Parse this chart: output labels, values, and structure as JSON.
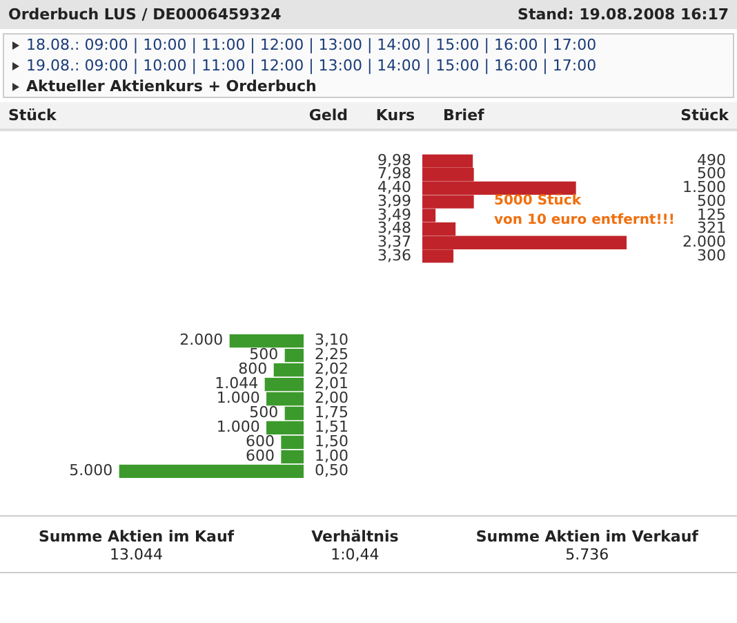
{
  "chart_data": [
    {
      "type": "bar",
      "orientation": "horizontal",
      "subtitle": "Stand: 19.08.2008 16:17",
      "xlabel": "Brief",
      "ylabel": "Kurs",
      "categories": [
        "9,98",
        "7,98",
        "4,40",
        "3,99",
        "3,49",
        "3,48",
        "3,37",
        "3,36"
      ],
      "values": [
        490,
        500,
        1500,
        500,
        125,
        321,
        2000,
        300
      ],
      "value_labels": [
        "490",
        "500",
        "1.500",
        "500",
        "125",
        "321",
        "2.000",
        "300"
      ],
      "color": "#c0242a",
      "grid": false,
      "legend": false,
      "annotations": [
        "18.08.: 09:00 | 10:00 | 11:00 | 12:00 | 13:00 | 14:00 | 15:00 | 16:00 | 17:00",
        "19.08.: 09:00 | 10:00 | 11:00 | 12:00 | 13:00 | 14:00 | 15:00 | 16:00 | 17:00",
        "Aktueller Aktienkurs + Orderbuch",
        "Stück",
        "Geld",
        "Stück",
        "5000 Stück\nvon 10 euro entfernt!!!"
      ]
    },
    {
      "type": "bar",
      "orientation": "horizontal",
      "title": "Orderbuch LUS / DE0006459324",
      "categories": [
        "3,10",
        "2,25",
        "2,02",
        "2,01",
        "2,00",
        "1,75",
        "1,51",
        "1,50",
        "1,00",
        "0,50"
      ],
      "values": [
        2000,
        500,
        800,
        1044,
        1000,
        500,
        1000,
        600,
        600,
        5000
      ],
      "value_labels": [
        "2.000",
        "500",
        "800",
        "1.044",
        "1.000",
        "500",
        "1.000",
        "600",
        "600",
        "5.000"
      ],
      "color": "#3c9a2c",
      "grid": false,
      "legend": false,
      "annotations": [
        "Summe Aktien im Kauf",
        "13.044",
        "Verhältnis",
        "1:0,44",
        "Summe Aktien im Verkauf",
        "5.736"
      ]
    }
  ]
}
